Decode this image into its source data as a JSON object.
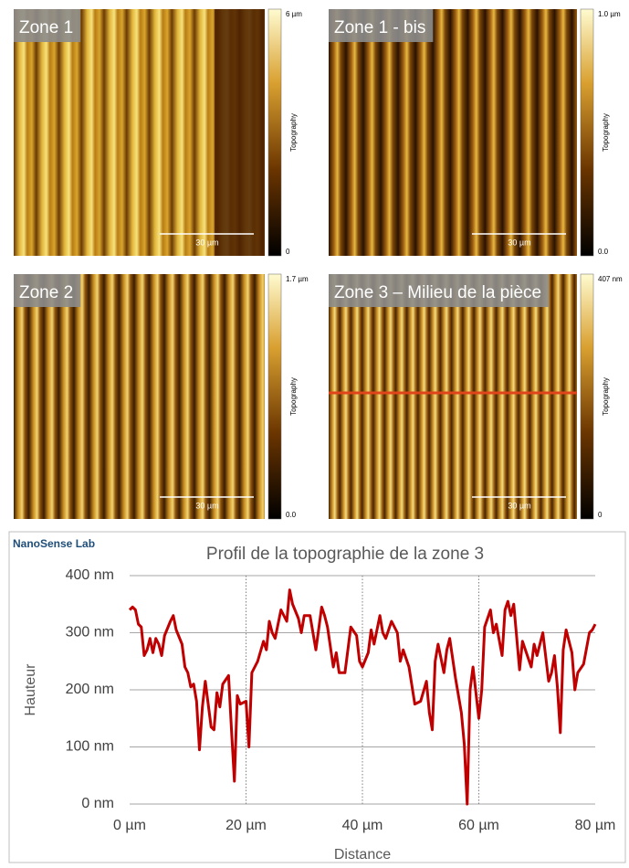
{
  "panels": [
    {
      "title": "Zone 1",
      "colorbar_max": "6 µm",
      "colorbar_min": "0",
      "colorbar_label": "Topography",
      "scale_bar": "30 µm"
    },
    {
      "title": "Zone 1 - bis",
      "colorbar_max": "1.0 µm",
      "colorbar_min": "0.0",
      "colorbar_label": "Topography",
      "scale_bar": "30 µm"
    },
    {
      "title": "Zone 2",
      "colorbar_max": "1.7 µm",
      "colorbar_min": "0.0",
      "colorbar_label": "Topography",
      "scale_bar": "30 µm"
    },
    {
      "title": "Zone 3 – Milieu de la pièce",
      "colorbar_max": "407 nm",
      "colorbar_min": "0",
      "colorbar_label": "Topography",
      "scale_bar": "30 µm"
    }
  ],
  "logo": "NanoSense Lab",
  "chart_data": {
    "type": "line",
    "title": "Profil de la topographie de la zone 3",
    "x_label": "Distance",
    "y_label": "Hauteur",
    "x": [
      0,
      0.5,
      1,
      1.5,
      2,
      2.5,
      3,
      3.5,
      4,
      4.5,
      5,
      5.5,
      6,
      7,
      7.5,
      8,
      9,
      9.5,
      10,
      10.5,
      11,
      11.5,
      12,
      12.5,
      13,
      13.5,
      14,
      14.5,
      15,
      15.5,
      16,
      17,
      17.5,
      18,
      18.5,
      19,
      20,
      20.5,
      21,
      22,
      23,
      23.5,
      24,
      24.5,
      25,
      26,
      27,
      27.5,
      28,
      29,
      29.5,
      30,
      31,
      32,
      33,
      33.5,
      34,
      35,
      35.5,
      36,
      37,
      38,
      39,
      39.5,
      40,
      41,
      41.5,
      42,
      43,
      43.5,
      44,
      45,
      46,
      46.5,
      47,
      48,
      49,
      50,
      51,
      51.5,
      52,
      52.5,
      53,
      54,
      54.5,
      55,
      56,
      57,
      57.5,
      58,
      58.5,
      59,
      60,
      60.5,
      61,
      62,
      62.5,
      63,
      64,
      64.5,
      65,
      65.5,
      66,
      67,
      67.5,
      68,
      69,
      69.5,
      70,
      71,
      72,
      72.5,
      73,
      73.5,
      74,
      74.5,
      75,
      76,
      76.5,
      77,
      78,
      79,
      79.5,
      80
    ],
    "series": [
      {
        "name": "Hauteur",
        "color": "#c00000",
        "values": [
          340,
          345,
          340,
          315,
          310,
          260,
          270,
          290,
          265,
          290,
          280,
          260,
          295,
          320,
          330,
          305,
          280,
          240,
          230,
          205,
          210,
          180,
          95,
          170,
          215,
          175,
          135,
          130,
          195,
          170,
          210,
          225,
          130,
          40,
          190,
          175,
          180,
          100,
          230,
          250,
          285,
          270,
          320,
          300,
          290,
          340,
          320,
          375,
          350,
          325,
          300,
          330,
          330,
          270,
          345,
          330,
          310,
          240,
          265,
          230,
          230,
          310,
          295,
          250,
          240,
          265,
          305,
          280,
          330,
          300,
          290,
          320,
          300,
          250,
          270,
          240,
          175,
          180,
          215,
          160,
          130,
          250,
          280,
          230,
          270,
          290,
          220,
          160,
          105,
          0,
          200,
          240,
          150,
          200,
          310,
          340,
          300,
          315,
          260,
          340,
          355,
          330,
          350,
          235,
          285,
          270,
          240,
          280,
          260,
          300,
          215,
          230,
          260,
          205,
          125,
          270,
          305,
          265,
          200,
          230,
          245,
          300,
          305,
          315
        ]
      }
    ],
    "xlim": [
      0,
      80
    ],
    "xticks": [
      {
        "value": 0,
        "label": "0 µm"
      },
      {
        "value": 20,
        "label": "20 µm"
      },
      {
        "value": 40,
        "label": "40 µm"
      },
      {
        "value": 60,
        "label": "60 µm"
      },
      {
        "value": 80,
        "label": "80 µm"
      }
    ],
    "ylim": [
      0,
      400
    ],
    "yticks": [
      {
        "value": 0,
        "label": "0 nm"
      },
      {
        "value": 100,
        "label": "100 nm"
      },
      {
        "value": 200,
        "label": "200 nm"
      },
      {
        "value": 300,
        "label": "300 nm"
      },
      {
        "value": 400,
        "label": "400 nm"
      }
    ],
    "grid": true
  }
}
